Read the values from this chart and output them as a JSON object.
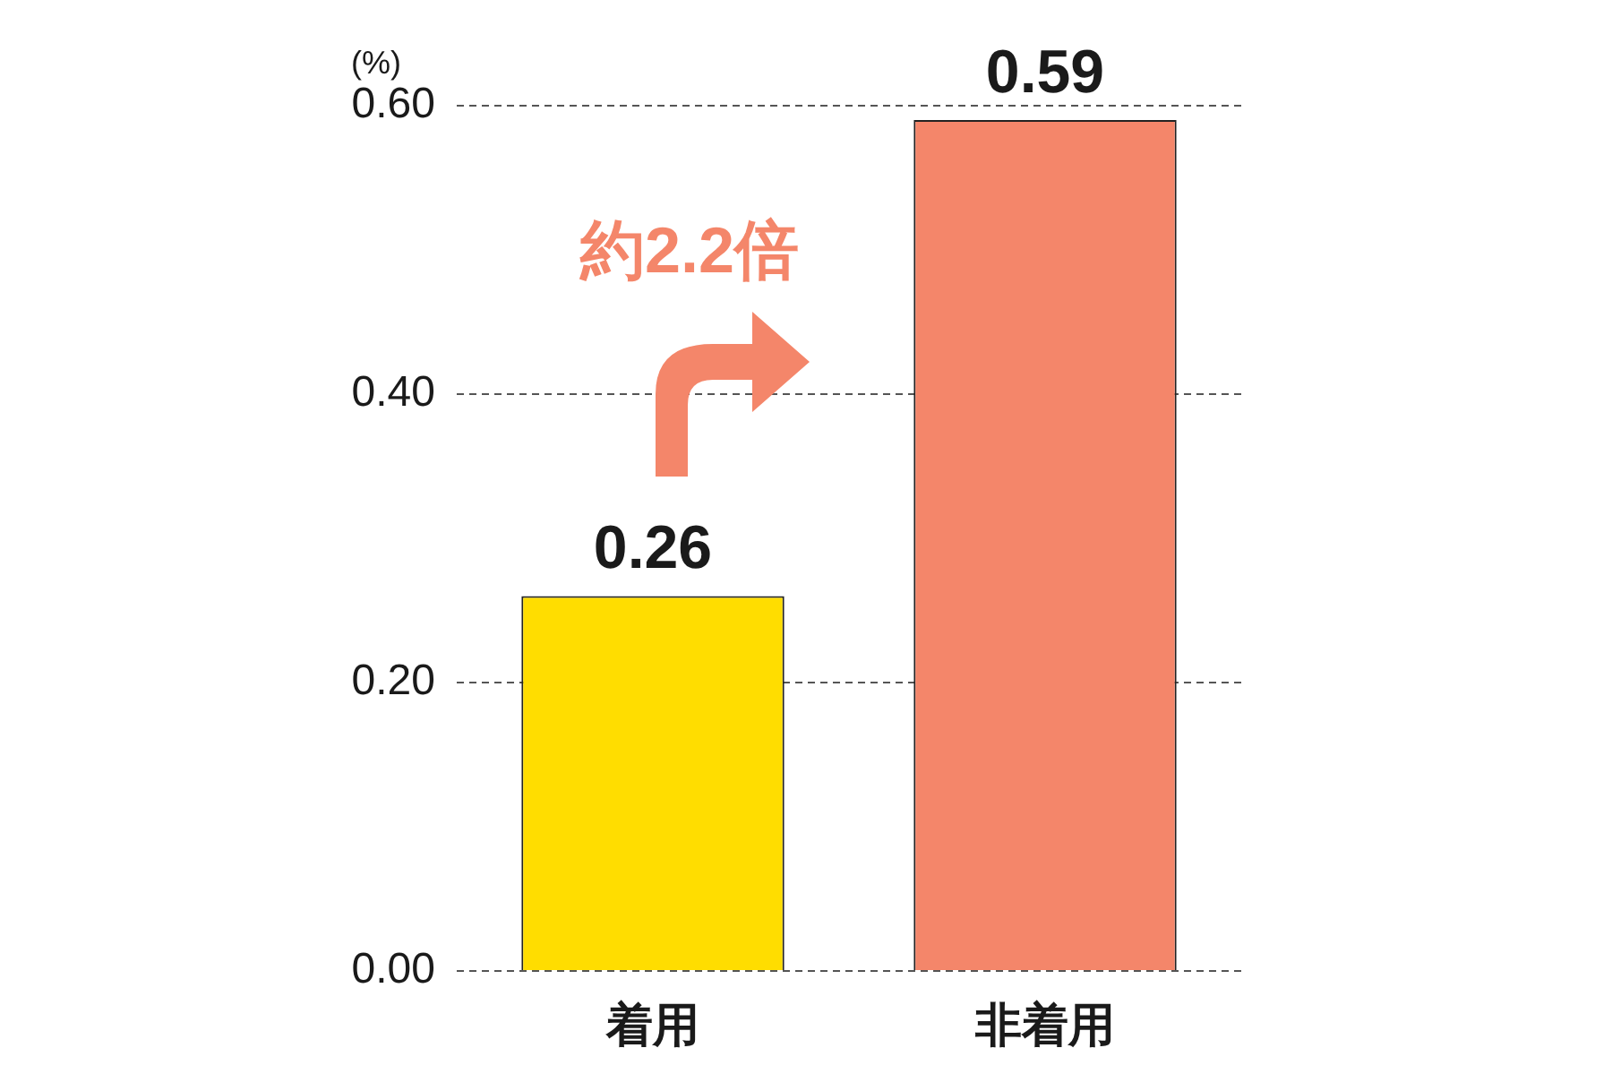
{
  "chart_data": {
    "type": "bar",
    "ylabel": "(%)",
    "categories": [
      "着用",
      "非着用"
    ],
    "values": [
      0.26,
      0.59
    ],
    "colors": [
      "#ffdd00",
      "#f4866a"
    ],
    "ylim": [
      0,
      0.6
    ],
    "yticks": [
      {
        "value": 0,
        "label": "0.00"
      },
      {
        "value": 0.2,
        "label": "0.20"
      },
      {
        "value": 0.4,
        "label": "0.40"
      },
      {
        "value": 0.6,
        "label": "0.60"
      }
    ],
    "grid": "y",
    "legend": false,
    "data_labels": true,
    "annotations": [
      "約2.2倍"
    ]
  }
}
